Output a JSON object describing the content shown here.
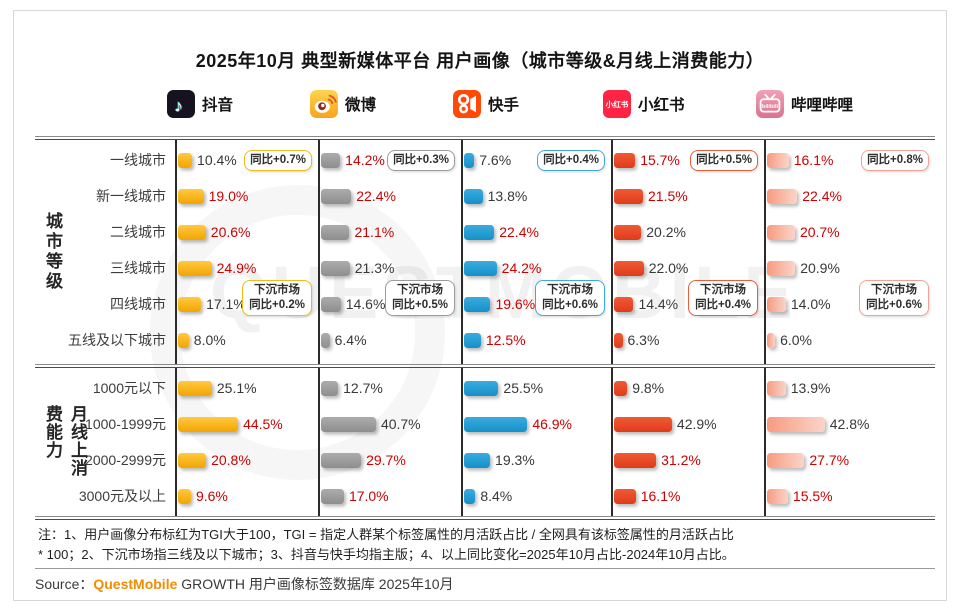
{
  "watermark": "QUESTMOBILE",
  "note": {
    "line1": "注：1、用户画像分布标红为TGI大于100，TGI = 指定人群某个标签属性的月活跃占比 / 全网具有该标签属性的月活跃占比",
    "line2": "* 100；2、下沉市场指三线及以下城市；3、抖音与快手均指主版；4、以上同比变化=2025年10月占比-2024年10月占比。"
  },
  "source": {
    "prefix": "Source：",
    "brand": "QuestMobile",
    "rest": " GROWTH 用户画像标签数据库 2025年10月"
  },
  "colors": {
    "tgi_high_text": "#CC0000",
    "normal_text": "#383838",
    "brand_orange": "#F28C00"
  },
  "chart_data": {
    "type": "bar",
    "title": "2025年10月 典型新媒体平台 用户画像（城市等级&月线上消费能力）",
    "unit": "%",
    "legend_note": "红色数值 = TGI大于100",
    "city": {
      "axis_label": "城市等级",
      "categories": [
        "一线城市",
        "新一线城市",
        "二线城市",
        "三线城市",
        "四线城市",
        "五线及以下城市"
      ]
    },
    "spend": {
      "axis_label": "月线上消费能力",
      "categories": [
        "1000元以下",
        "1000-1999元",
        "2000-2999元",
        "3000元及以上"
      ]
    },
    "platforms": [
      {
        "name": "抖音",
        "bar_color_top": "#FFC93E",
        "bar_color_bottom": "#F3A402",
        "badge_border_color": "#F3B81C",
        "yoy_badge": "同比+0.7%",
        "sink_badge": [
          "下沉市场",
          "同比+0.2%"
        ],
        "city": [
          {
            "label": "10.4%",
            "pct": 10.4,
            "tgi_high": false
          },
          {
            "label": "19.0%",
            "pct": 19.0,
            "tgi_high": true
          },
          {
            "label": "20.6%",
            "pct": 20.6,
            "tgi_high": true
          },
          {
            "label": "24.9%",
            "pct": 24.9,
            "tgi_high": true
          },
          {
            "label": "17.1%",
            "pct": 17.1,
            "tgi_high": false
          },
          {
            "label": "8.0%",
            "pct": 8.0,
            "tgi_high": false
          }
        ],
        "spend": [
          {
            "label": "25.1%",
            "pct": 25.1,
            "tgi_high": false
          },
          {
            "label": "44.5%",
            "pct": 44.5,
            "tgi_high": true
          },
          {
            "label": "20.8%",
            "pct": 20.8,
            "tgi_high": true
          },
          {
            "label": "9.6%",
            "pct": 9.6,
            "tgi_high": true
          }
        ]
      },
      {
        "name": "微博",
        "bar_color_top": "#ACACAC",
        "bar_color_bottom": "#8E8E8E",
        "badge_border_color": "#9C9C9C",
        "yoy_badge": "同比+0.3%",
        "sink_badge": [
          "下沉市场",
          "同比+0.5%"
        ],
        "city": [
          {
            "label": "14.2%",
            "pct": 14.2,
            "tgi_high": true
          },
          {
            "label": "22.4%",
            "pct": 22.4,
            "tgi_high": true
          },
          {
            "label": "21.1%",
            "pct": 21.1,
            "tgi_high": true
          },
          {
            "label": "21.3%",
            "pct": 21.3,
            "tgi_high": false
          },
          {
            "label": "14.6%",
            "pct": 14.6,
            "tgi_high": false
          },
          {
            "label": "6.4%",
            "pct": 6.4,
            "tgi_high": false
          }
        ],
        "spend": [
          {
            "label": "12.7%",
            "pct": 12.7,
            "tgi_high": false
          },
          {
            "label": "40.7%",
            "pct": 40.7,
            "tgi_high": false
          },
          {
            "label": "29.7%",
            "pct": 29.7,
            "tgi_high": true
          },
          {
            "label": "17.0%",
            "pct": 17.0,
            "tgi_high": true
          }
        ]
      },
      {
        "name": "快手",
        "bar_color_top": "#3BABDE",
        "bar_color_bottom": "#1590C9",
        "badge_border_color": "#3FA9DB",
        "yoy_badge": "同比+0.4%",
        "sink_badge": [
          "下沉市场",
          "同比+0.6%"
        ],
        "city": [
          {
            "label": "7.6%",
            "pct": 7.6,
            "tgi_high": false
          },
          {
            "label": "13.8%",
            "pct": 13.8,
            "tgi_high": false
          },
          {
            "label": "22.4%",
            "pct": 22.4,
            "tgi_high": true
          },
          {
            "label": "24.2%",
            "pct": 24.2,
            "tgi_high": true
          },
          {
            "label": "19.6%",
            "pct": 19.6,
            "tgi_high": true
          },
          {
            "label": "12.5%",
            "pct": 12.5,
            "tgi_high": true
          }
        ],
        "spend": [
          {
            "label": "25.5%",
            "pct": 25.5,
            "tgi_high": false
          },
          {
            "label": "46.9%",
            "pct": 46.9,
            "tgi_high": true
          },
          {
            "label": "19.3%",
            "pct": 19.3,
            "tgi_high": false
          },
          {
            "label": "8.4%",
            "pct": 8.4,
            "tgi_high": false
          }
        ]
      },
      {
        "name": "小红书",
        "icon_text": "小红书",
        "bar_color_top": "#EF5B33",
        "bar_color_bottom": "#E03B1B",
        "badge_border_color": "#E95C3C",
        "yoy_badge": "同比+0.5%",
        "sink_badge": [
          "下沉市场",
          "同比+0.4%"
        ],
        "city": [
          {
            "label": "15.7%",
            "pct": 15.7,
            "tgi_high": true
          },
          {
            "label": "21.5%",
            "pct": 21.5,
            "tgi_high": true
          },
          {
            "label": "20.2%",
            "pct": 20.2,
            "tgi_high": false
          },
          {
            "label": "22.0%",
            "pct": 22.0,
            "tgi_high": false
          },
          {
            "label": "14.4%",
            "pct": 14.4,
            "tgi_high": false
          },
          {
            "label": "6.3%",
            "pct": 6.3,
            "tgi_high": false
          }
        ],
        "spend": [
          {
            "label": "9.8%",
            "pct": 9.8,
            "tgi_high": false
          },
          {
            "label": "42.9%",
            "pct": 42.9,
            "tgi_high": false
          },
          {
            "label": "31.2%",
            "pct": 31.2,
            "tgi_high": true
          },
          {
            "label": "16.1%",
            "pct": 16.1,
            "tgi_high": true
          }
        ]
      },
      {
        "name": "哔哩哔哩",
        "icon_text": "bilibili",
        "bar_color_top": "#F79B80",
        "bar_color_bottom": "#FBD4C9",
        "badge_border_color": "#F2A294",
        "yoy_badge": "同比+0.8%",
        "sink_badge": [
          "下沉市场",
          "同比+0.6%"
        ],
        "city": [
          {
            "label": "16.1%",
            "pct": 16.1,
            "tgi_high": true
          },
          {
            "label": "22.4%",
            "pct": 22.4,
            "tgi_high": true
          },
          {
            "label": "20.7%",
            "pct": 20.7,
            "tgi_high": true
          },
          {
            "label": "20.9%",
            "pct": 20.9,
            "tgi_high": false
          },
          {
            "label": "14.0%",
            "pct": 14.0,
            "tgi_high": false
          },
          {
            "label": "6.0%",
            "pct": 6.0,
            "tgi_high": false
          }
        ],
        "spend": [
          {
            "label": "13.9%",
            "pct": 13.9,
            "tgi_high": false
          },
          {
            "label": "42.8%",
            "pct": 42.8,
            "tgi_high": false
          },
          {
            "label": "27.7%",
            "pct": 27.7,
            "tgi_high": true
          },
          {
            "label": "15.5%",
            "pct": 15.5,
            "tgi_high": true
          }
        ]
      }
    ]
  }
}
